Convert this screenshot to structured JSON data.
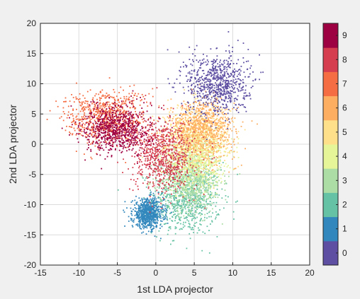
{
  "chart_data": {
    "type": "scatter",
    "xlabel": "1st LDA projector",
    "ylabel": "2nd LDA projector",
    "xlim": [
      -15,
      20
    ],
    "ylim": [
      -20,
      20
    ],
    "x_ticks": [
      "-15",
      "-10",
      "-5",
      "0",
      "5",
      "10",
      "15",
      "20"
    ],
    "y_ticks": [
      "-20",
      "-15",
      "-10",
      "-5",
      "0",
      "5",
      "10",
      "15",
      "20"
    ],
    "grid": true,
    "colorbar": {
      "placement": "right",
      "labels": [
        "0",
        "1",
        "2",
        "3",
        "4",
        "5",
        "6",
        "7",
        "8",
        "9"
      ],
      "colors": [
        "#5e4fa2",
        "#3288bd",
        "#66c2a5",
        "#abdda4",
        "#e6f598",
        "#fee08b",
        "#fdae61",
        "#f46d43",
        "#d53e4f",
        "#9e0142"
      ]
    },
    "clusters": [
      {
        "label": "0",
        "center": [
          8.0,
          10.0
        ],
        "spread": [
          2.0,
          2.6
        ]
      },
      {
        "label": "1",
        "center": [
          -1.0,
          -11.5
        ],
        "spread": [
          1.0,
          1.2
        ]
      },
      {
        "label": "2",
        "center": [
          4.0,
          -9.0
        ],
        "spread": [
          2.2,
          3.0
        ]
      },
      {
        "label": "3",
        "center": [
          4.5,
          -6.0
        ],
        "spread": [
          2.0,
          2.5
        ]
      },
      {
        "label": "4",
        "center": [
          5.0,
          -2.0
        ],
        "spread": [
          2.0,
          2.5
        ]
      },
      {
        "label": "5",
        "center": [
          5.5,
          1.5
        ],
        "spread": [
          2.0,
          2.5
        ]
      },
      {
        "label": "6",
        "center": [
          6.0,
          2.5
        ],
        "spread": [
          2.2,
          2.4
        ]
      },
      {
        "label": "7",
        "center": [
          -6.5,
          4.5
        ],
        "spread": [
          2.6,
          2.2
        ]
      },
      {
        "label": "8",
        "center": [
          1.0,
          -2.0
        ],
        "spread": [
          2.0,
          3.0
        ]
      },
      {
        "label": "9",
        "center": [
          -5.0,
          2.5
        ],
        "spread": [
          2.2,
          2.0
        ]
      }
    ]
  }
}
